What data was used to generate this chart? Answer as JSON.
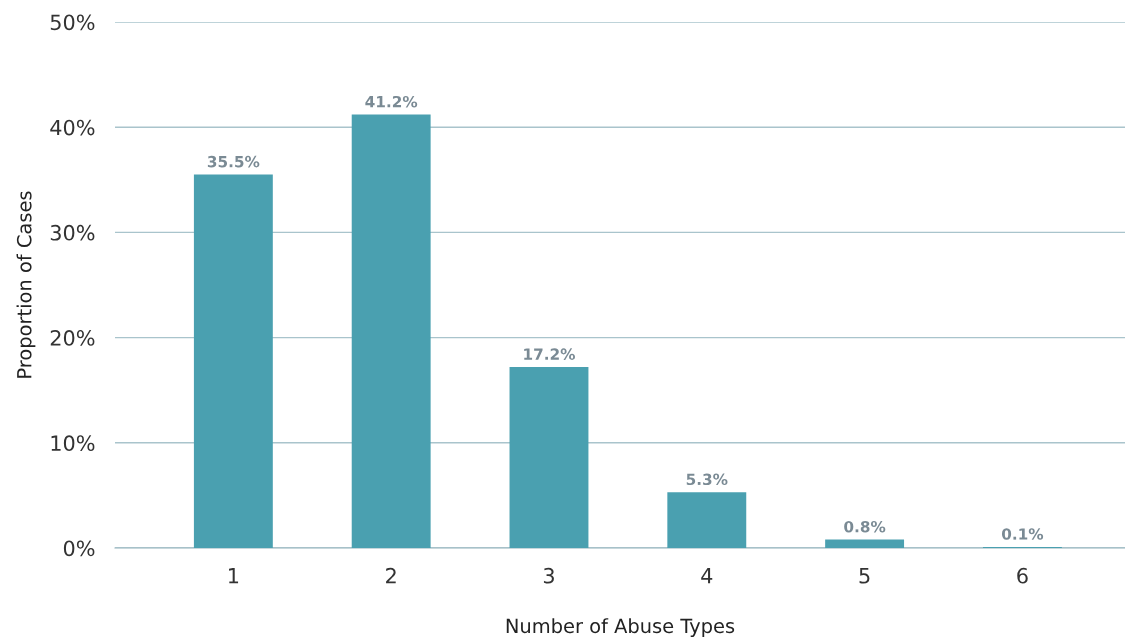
{
  "chart_data": {
    "type": "bar",
    "xlabel": "Number of Abuse Types",
    "ylabel": "Proportion of Cases",
    "categories": [
      "1",
      "2",
      "3",
      "4",
      "5",
      "6"
    ],
    "values": [
      35.5,
      41.2,
      17.2,
      5.3,
      0.8,
      0.1
    ],
    "value_labels": [
      "35.5%",
      "41.2%",
      "17.2%",
      "5.3%",
      "0.8%",
      "0.1%"
    ],
    "color": "#4aa0b0",
    "ylim": [
      0,
      50
    ],
    "yticks": [
      {
        "value": 0,
        "label": "0%"
      },
      {
        "value": 10,
        "label": "10%"
      },
      {
        "value": 20,
        "label": "20%"
      },
      {
        "value": 30,
        "label": "30%"
      },
      {
        "value": 40,
        "label": "40%"
      },
      {
        "value": 50,
        "label": "50%"
      }
    ],
    "grid": "y"
  }
}
